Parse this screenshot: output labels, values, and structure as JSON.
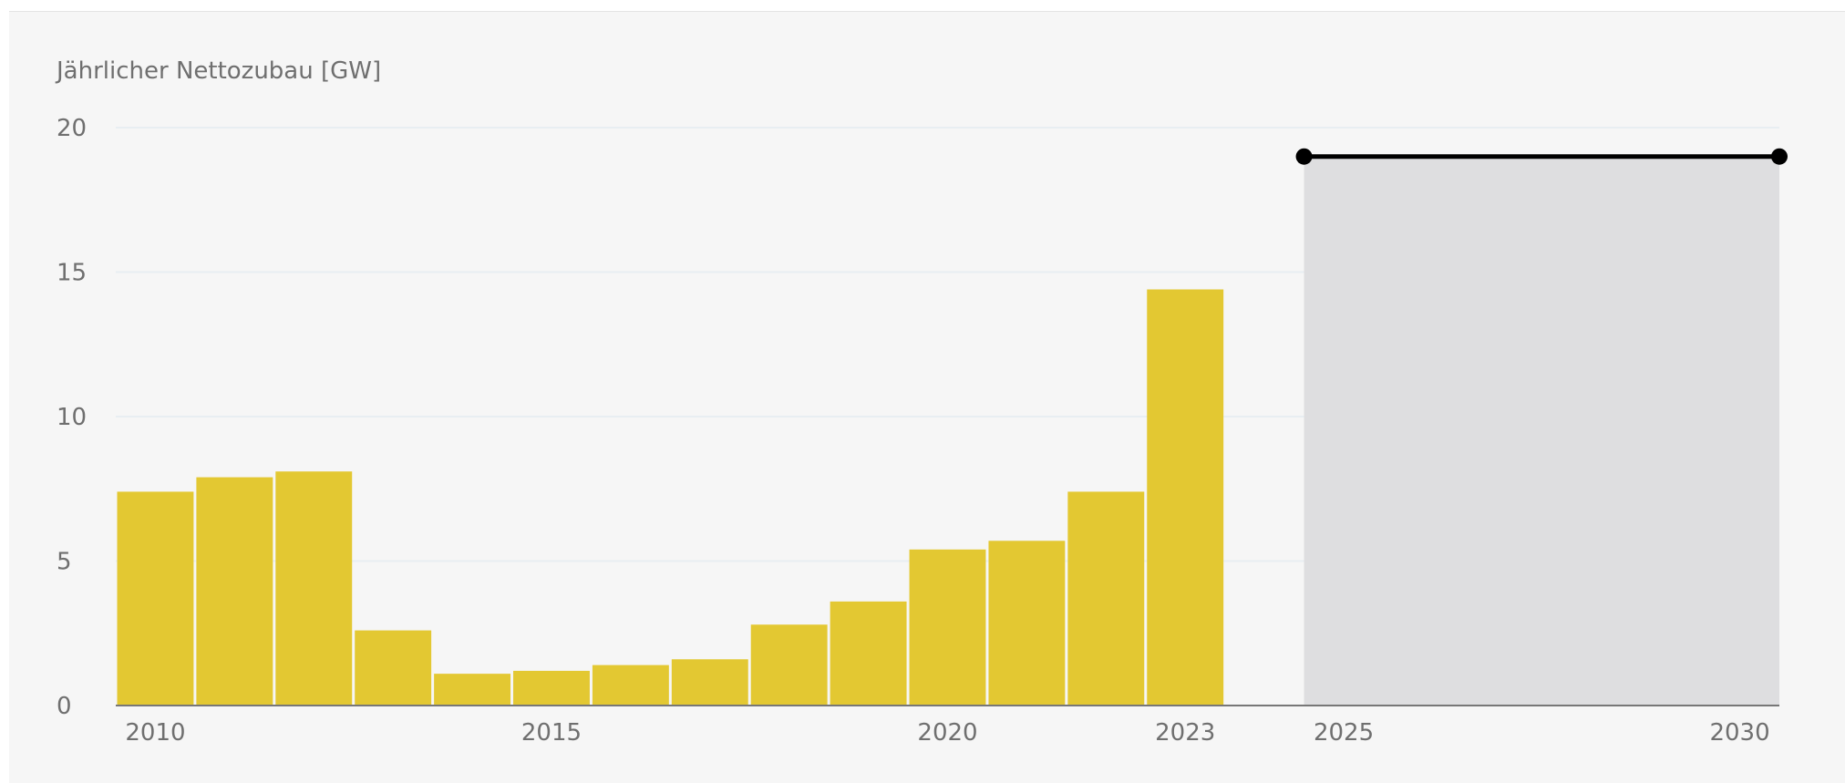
{
  "chart_data": {
    "type": "bar",
    "ylabel": "Jährlicher Nettozubau [GW]",
    "ylim": [
      0,
      20
    ],
    "y_ticks": [
      {
        "value": 0,
        "label": "0"
      },
      {
        "value": 5,
        "label": "5"
      },
      {
        "value": 10,
        "label": "10"
      },
      {
        "value": 15,
        "label": "15"
      },
      {
        "value": 20,
        "label": "20"
      }
    ],
    "xlim": [
      2009.5,
      2030.5
    ],
    "x_ticks": [
      {
        "value": 2010,
        "label": "2010"
      },
      {
        "value": 2015,
        "label": "2015"
      },
      {
        "value": 2020,
        "label": "2020"
      },
      {
        "value": 2023,
        "label": "2023"
      },
      {
        "value": 2025,
        "label": "2025"
      },
      {
        "value": 2030,
        "label": "2030"
      }
    ],
    "categories": [
      2010,
      2011,
      2012,
      2013,
      2014,
      2015,
      2016,
      2017,
      2018,
      2019,
      2020,
      2021,
      2022,
      2023
    ],
    "values": [
      7.4,
      7.9,
      8.1,
      2.6,
      1.1,
      1.2,
      1.4,
      1.6,
      2.8,
      3.6,
      5.4,
      5.7,
      7.4,
      14.4
    ],
    "bar_color": "#e3c832",
    "target_range": {
      "x_start": 2025,
      "x_end": 2030,
      "value": 19,
      "fill_color": "#dedee0",
      "line_color": "#000000"
    },
    "grid": true,
    "grid_color": "#e8eef2",
    "axis_color": "#777777"
  }
}
